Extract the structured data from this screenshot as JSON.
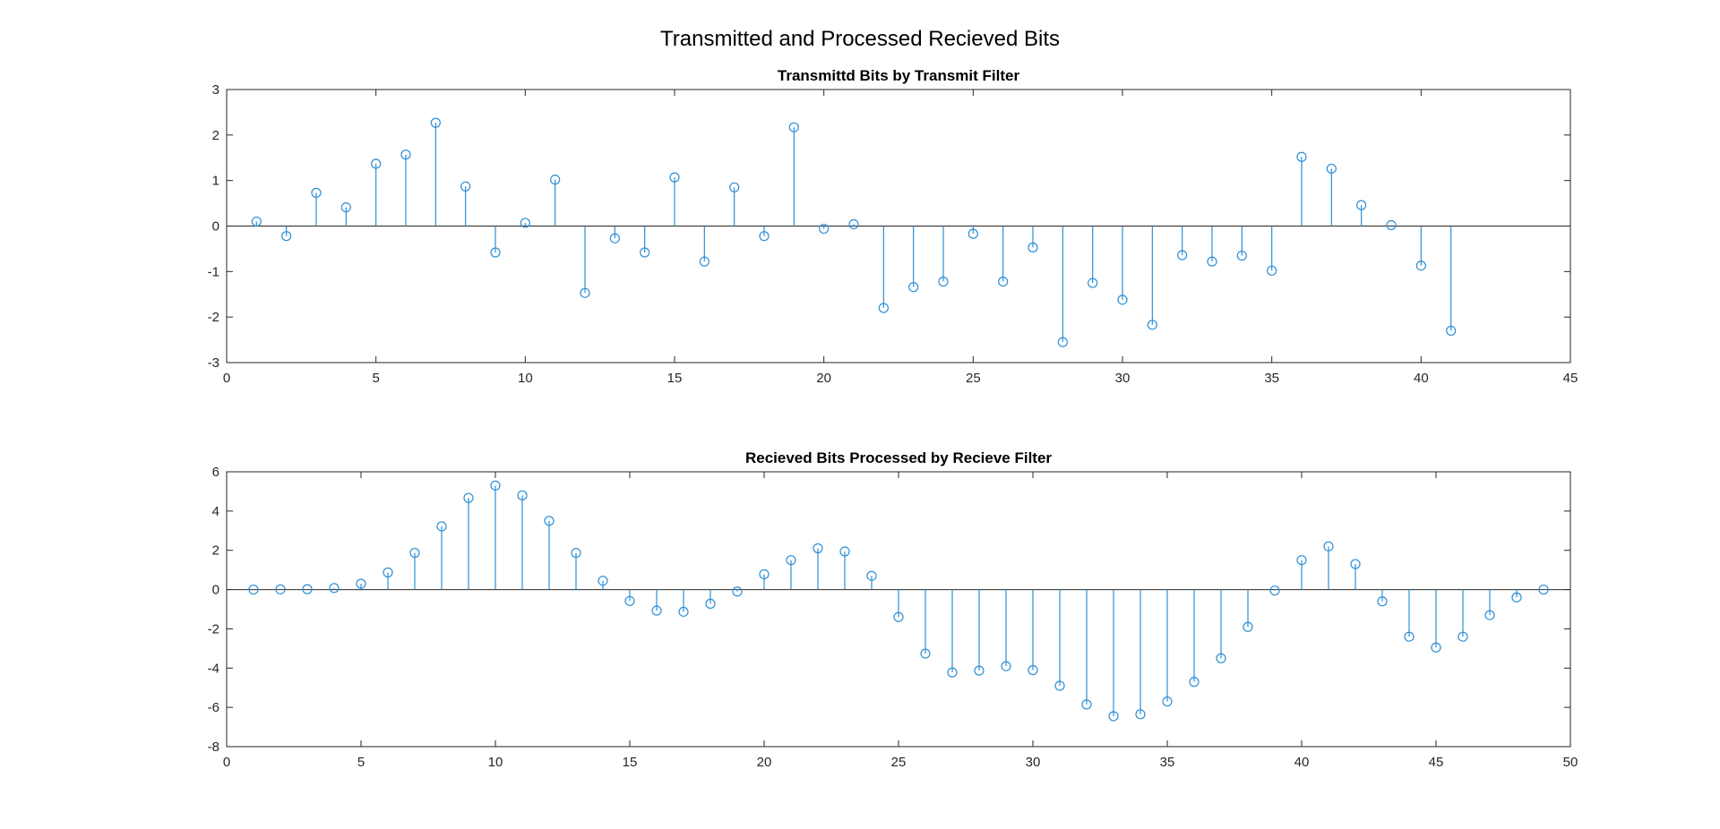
{
  "figure": {
    "title": "Transmitted and Processed Recieved Bits",
    "stem_color": "#2d8fd5",
    "axis_color": "#262626",
    "background": "#ffffff"
  },
  "chart_data": [
    {
      "type": "stem",
      "title": "Transmittd Bits by Transmit Filter",
      "xlabel": "",
      "ylabel": "",
      "xlim": [
        0,
        45
      ],
      "ylim": [
        -3,
        3
      ],
      "xticks": [
        0,
        5,
        10,
        15,
        20,
        25,
        30,
        35,
        40,
        45
      ],
      "yticks": [
        -3,
        -2,
        -1,
        0,
        1,
        2,
        3
      ],
      "grid": false,
      "x": [
        1,
        2,
        3,
        4,
        5,
        6,
        7,
        8,
        9,
        10,
        11,
        12,
        13,
        14,
        15,
        16,
        17,
        18,
        19,
        20,
        21,
        22,
        23,
        24,
        25,
        26,
        27,
        28,
        29,
        30,
        31,
        32,
        33,
        34,
        35,
        36,
        37,
        38,
        39,
        40,
        41
      ],
      "values": [
        0.1,
        -0.22,
        0.73,
        0.41,
        1.37,
        1.57,
        2.27,
        0.87,
        -0.58,
        0.07,
        1.02,
        -1.47,
        -0.27,
        -0.58,
        1.07,
        -0.78,
        0.85,
        -0.22,
        2.17,
        -0.06,
        0.04,
        -1.8,
        -1.34,
        -1.22,
        -0.17,
        -1.22,
        -0.47,
        -2.55,
        -1.25,
        -1.62,
        -2.17,
        -0.64,
        -0.78,
        -0.65,
        -0.98,
        1.52,
        1.26,
        0.46,
        0.02,
        -0.87,
        -2.3
      ]
    },
    {
      "type": "stem",
      "title": "Recieved Bits Processed by Recieve Filter",
      "xlabel": "",
      "ylabel": "",
      "xlim": [
        0,
        50
      ],
      "ylim": [
        -8,
        6
      ],
      "xticks": [
        0,
        5,
        10,
        15,
        20,
        25,
        30,
        35,
        40,
        45,
        50
      ],
      "yticks": [
        -8,
        -6,
        -4,
        -2,
        0,
        2,
        4,
        6
      ],
      "grid": false,
      "x": [
        1,
        2,
        3,
        4,
        5,
        6,
        7,
        8,
        9,
        10,
        11,
        12,
        13,
        14,
        15,
        16,
        17,
        18,
        19,
        20,
        21,
        22,
        23,
        24,
        25,
        26,
        27,
        28,
        29,
        30,
        31,
        32,
        33,
        34,
        35,
        36,
        37,
        38,
        39,
        40,
        41,
        42,
        43,
        44,
        45,
        46,
        47,
        48,
        49
      ],
      "values": [
        0.0,
        0.01,
        0.02,
        0.08,
        0.3,
        0.87,
        1.87,
        3.22,
        4.67,
        5.3,
        4.8,
        3.5,
        1.87,
        0.45,
        -0.58,
        -1.07,
        -1.13,
        -0.72,
        -0.1,
        0.78,
        1.5,
        2.1,
        1.94,
        0.7,
        -1.4,
        -3.26,
        -4.22,
        -4.13,
        -3.9,
        -4.1,
        -4.9,
        -5.85,
        -6.45,
        -6.35,
        -5.7,
        -4.7,
        -3.5,
        -1.9,
        -0.05,
        1.5,
        2.2,
        1.3,
        -0.6,
        -2.4,
        -2.95,
        -2.4,
        -1.3,
        -0.4,
        0.0
      ]
    }
  ]
}
